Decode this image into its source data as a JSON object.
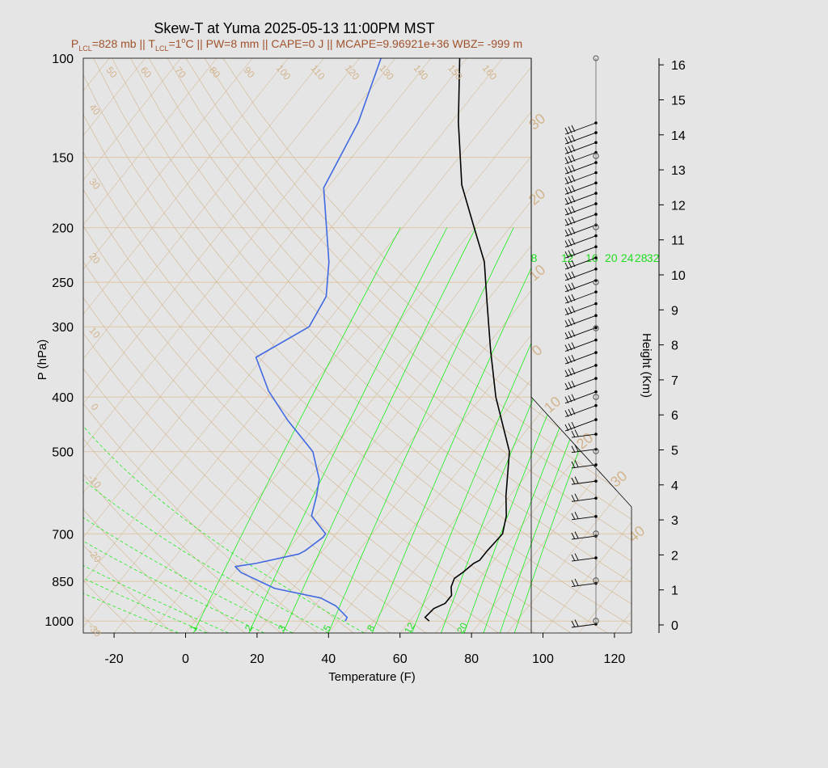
{
  "chart_data": {
    "type": "line",
    "title": "Skew-T at Yuma 2025-05-13 11:00PM MST",
    "subtitle": {
      "p_lcl": "P",
      "p_lcl_sub": "LCL",
      "p_lcl_val": "=828 mb || T",
      "t_lcl_sub": "LCL",
      "t_lcl_val": "=1",
      "t_lcl_deg": "o",
      "rest": "C || PW=8 mm || CAPE=0 J || MCAPE=9.96921e+36 WBZ= -999 m"
    },
    "xlabel": "Temperature (F)",
    "ylabel": "P (hPa)",
    "y2label": "Height (Km)",
    "x_ticks": [
      "-20",
      "0",
      "20",
      "40",
      "60",
      "80",
      "100",
      "120"
    ],
    "x_tick_values": [
      -20,
      0,
      20,
      40,
      60,
      80,
      100,
      120
    ],
    "xlim": [
      -29,
      124
    ],
    "y_ticks": [
      "100",
      "150",
      "200",
      "250",
      "300",
      "400",
      "500",
      "700",
      "850",
      "1000"
    ],
    "y_tick_values": [
      100,
      150,
      200,
      250,
      300,
      400,
      500,
      700,
      850,
      1000
    ],
    "ylim": [
      1050,
      100
    ],
    "y_scale": "log",
    "height_ticks": [
      "0",
      "1",
      "2",
      "3",
      "4",
      "5",
      "6",
      "7",
      "8",
      "9",
      "10",
      "11",
      "12",
      "13",
      "14",
      "15",
      "16"
    ],
    "mixing_ratio_labels": [
      "8",
      "12",
      "16",
      "20",
      "24",
      "28",
      "32"
    ],
    "mixing_ratio_values": [
      8,
      12,
      16,
      20,
      24,
      28,
      32
    ],
    "dry_adiabat_labels": [
      "50",
      "60",
      "70",
      "80",
      "90",
      "100",
      "110",
      "120",
      "130",
      "140",
      "150",
      "160"
    ],
    "isotherm_labels_left": [
      "40",
      "30",
      "20",
      "10",
      "0",
      "-10",
      "-20",
      "-30"
    ],
    "isotherm_labels_right": [
      "30",
      "20",
      "10",
      "0",
      "10",
      "20",
      "30",
      "40"
    ],
    "moist_adiabat_labels": [
      "1",
      "2",
      "3",
      "5",
      "8",
      "12",
      "20"
    ],
    "colors": {
      "temperature": "#000000",
      "dewpoint": "#4169e1",
      "mixing_ratio": "#00ee00",
      "isobar": "#dfc7a8",
      "adiabat": "#d2b48c",
      "title": "#000000",
      "subtitle": "#a0522d",
      "background": "#e5e5e5"
    },
    "series": [
      {
        "name": "",
        "kind": "temperature",
        "points": [
          [
            1000,
            65.5
          ],
          [
            985,
            63.5
          ],
          [
            950,
            64
          ],
          [
            930,
            66
          ],
          [
            900,
            66
          ],
          [
            870,
            64
          ],
          [
            840,
            63
          ],
          [
            820,
            64
          ],
          [
            790,
            65
          ],
          [
            780,
            66
          ],
          [
            750,
            66
          ],
          [
            700,
            66.5
          ],
          [
            650,
            63.5
          ],
          [
            600,
            59
          ],
          [
            500,
            50
          ],
          [
            400,
            34
          ],
          [
            330,
            22
          ],
          [
            270,
            10
          ],
          [
            230,
            0.5
          ],
          [
            200,
            -10
          ],
          [
            168,
            -23
          ],
          [
            130,
            -38
          ],
          [
            100,
            -52
          ]
        ]
      },
      {
        "name": "",
        "kind": "dewpoint",
        "points": [
          [
            1000,
            42
          ],
          [
            985,
            41.7
          ],
          [
            940,
            36
          ],
          [
            910,
            30
          ],
          [
            875,
            15
          ],
          [
            820,
            2
          ],
          [
            800,
            -1
          ],
          [
            790,
            4
          ],
          [
            760,
            14
          ],
          [
            750,
            15
          ],
          [
            710,
            17
          ],
          [
            700,
            17
          ],
          [
            650,
            9
          ],
          [
            600,
            6
          ],
          [
            560,
            3
          ],
          [
            500,
            -5
          ],
          [
            440,
            -19
          ],
          [
            390,
            -31
          ],
          [
            340,
            -42
          ],
          [
            300,
            -34
          ],
          [
            265,
            -36
          ],
          [
            230,
            -43
          ],
          [
            170,
            -61
          ],
          [
            130,
            -66
          ],
          [
            100,
            -74
          ]
        ]
      }
    ],
    "wind_barbs": 37,
    "grid": true
  }
}
